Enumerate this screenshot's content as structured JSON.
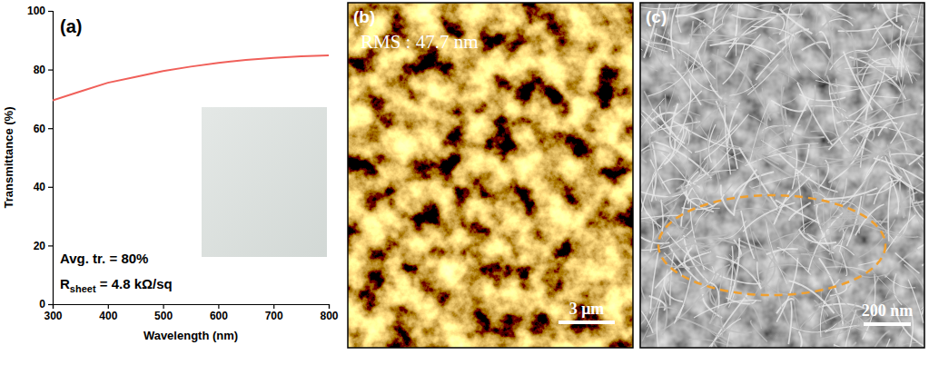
{
  "chart_data": {
    "type": "line",
    "panel_label": "(a)",
    "xlabel": "Wavelength (nm)",
    "ylabel": "Transmittance (%)",
    "x": [
      300,
      350,
      400,
      450,
      500,
      550,
      600,
      650,
      700,
      750,
      800
    ],
    "series": [
      {
        "color": "#f0605a",
        "values": [
          69.5,
          72.5,
          75.5,
          77.5,
          79.5,
          81,
          82.3,
          83.3,
          84,
          84.5,
          84.8
        ]
      }
    ],
    "xlim": [
      300,
      800
    ],
    "xticks": [
      300,
      400,
      500,
      600,
      700,
      800
    ],
    "ylim": [
      0,
      100
    ],
    "yticks": [
      0,
      20,
      40,
      60,
      80,
      100
    ],
    "annotations": [
      {
        "text": "Avg. tr. = 80%"
      },
      {
        "text": "R",
        "subscript": "sheet",
        "suffix": " = 4.8 kΩ/sq"
      }
    ]
  },
  "images": [
    {
      "panel_label": "(b)",
      "text": "RMS : 47.7 nm",
      "scale_bar": "3 μm"
    },
    {
      "panel_label": "(c)",
      "scale_bar": "200 nm"
    }
  ]
}
